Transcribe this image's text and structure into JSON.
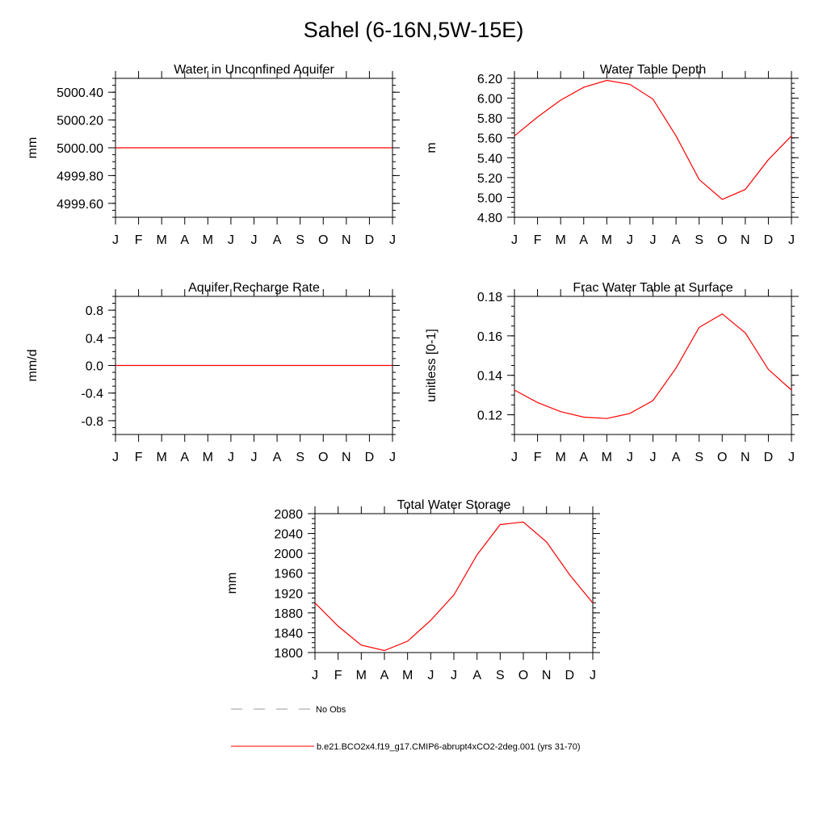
{
  "title": "Sahel (6-16N,5W-15E)",
  "legend": {
    "items": [
      {
        "label": "No Obs",
        "style": "dashed",
        "color": "#999999"
      },
      {
        "label": "b.e21.BCO2x4.f19_g17.CMIP6-abrupt4xCO2-2deg.001 (yrs 31-70)",
        "style": "solid",
        "color": "#ff0000"
      }
    ]
  },
  "chart_data": [
    {
      "type": "line",
      "title": "Water in Unconfined Aquifer",
      "ylabel": "mm",
      "categories": [
        "J",
        "F",
        "M",
        "A",
        "M",
        "J",
        "J",
        "A",
        "S",
        "O",
        "N",
        "D",
        "J"
      ],
      "ylim": [
        4999.5,
        5000.5
      ],
      "yticks": [
        "4999.60",
        "4999.80",
        "5000.00",
        "5000.20",
        "5000.40"
      ],
      "ytick_values": [
        4999.6,
        4999.8,
        5000.0,
        5000.2,
        5000.4
      ],
      "series": [
        {
          "color": "#ff0000",
          "values": [
            5000,
            5000,
            5000,
            5000,
            5000,
            5000,
            5000,
            5000,
            5000,
            5000,
            5000,
            5000,
            5000
          ]
        }
      ]
    },
    {
      "type": "line",
      "title": "Water Table Depth",
      "ylabel": "m",
      "categories": [
        "J",
        "F",
        "M",
        "A",
        "M",
        "J",
        "J",
        "A",
        "S",
        "O",
        "N",
        "D",
        "J"
      ],
      "ylim": [
        4.8,
        6.2
      ],
      "yticks": [
        "4.80",
        "5.00",
        "5.20",
        "5.40",
        "5.60",
        "5.80",
        "6.00",
        "6.20"
      ],
      "ytick_values": [
        4.8,
        5.0,
        5.2,
        5.4,
        5.6,
        5.8,
        6.0,
        6.2
      ],
      "series": [
        {
          "color": "#ff0000",
          "values": [
            5.62,
            5.81,
            5.98,
            6.11,
            6.18,
            6.14,
            5.99,
            5.62,
            5.18,
            4.98,
            5.08,
            5.38,
            5.62
          ]
        }
      ]
    },
    {
      "type": "line",
      "title": "Aquifer Recharge Rate",
      "ylabel": "mm/d",
      "categories": [
        "J",
        "F",
        "M",
        "A",
        "M",
        "J",
        "J",
        "A",
        "S",
        "O",
        "N",
        "D",
        "J"
      ],
      "ylim": [
        -1.0,
        1.0
      ],
      "yticks": [
        "-0.8",
        "-0.4",
        "0.0",
        "0.4",
        "0.8"
      ],
      "ytick_values": [
        -0.8,
        -0.4,
        0.0,
        0.4,
        0.8
      ],
      "series": [
        {
          "color": "#ff0000",
          "values": [
            0,
            0,
            0,
            0,
            0,
            0,
            0,
            0,
            0,
            0,
            0,
            0,
            0
          ]
        }
      ]
    },
    {
      "type": "line",
      "title": "Frac Water Table at Surface",
      "ylabel": "unitless [0-1]",
      "categories": [
        "J",
        "F",
        "M",
        "A",
        "M",
        "J",
        "J",
        "A",
        "S",
        "O",
        "N",
        "D",
        "J"
      ],
      "ylim": [
        0.11,
        0.18
      ],
      "yticks": [
        "0.12",
        "0.14",
        "0.16",
        "0.18"
      ],
      "ytick_values": [
        0.12,
        0.14,
        0.16,
        0.18
      ],
      "series": [
        {
          "color": "#ff0000",
          "values": [
            0.1325,
            0.1262,
            0.1216,
            0.1188,
            0.1181,
            0.1207,
            0.1272,
            0.1437,
            0.1643,
            0.1711,
            0.1615,
            0.143,
            0.1325
          ]
        }
      ]
    },
    {
      "type": "line",
      "title": "Total Water Storage",
      "ylabel": "mm",
      "categories": [
        "J",
        "F",
        "M",
        "A",
        "M",
        "J",
        "J",
        "A",
        "S",
        "O",
        "N",
        "D",
        "J"
      ],
      "ylim": [
        1800,
        2080
      ],
      "yticks": [
        "1800",
        "1840",
        "1880",
        "1920",
        "1960",
        "2000",
        "2040",
        "2080"
      ],
      "ytick_values": [
        1800,
        1840,
        1880,
        1920,
        1960,
        2000,
        2040,
        2080
      ],
      "series": [
        {
          "color": "#ff0000",
          "values": [
            1900,
            1853,
            1815,
            1804,
            1823,
            1865,
            1916,
            1997,
            2058,
            2063,
            2023,
            1957,
            1900
          ]
        }
      ]
    }
  ]
}
